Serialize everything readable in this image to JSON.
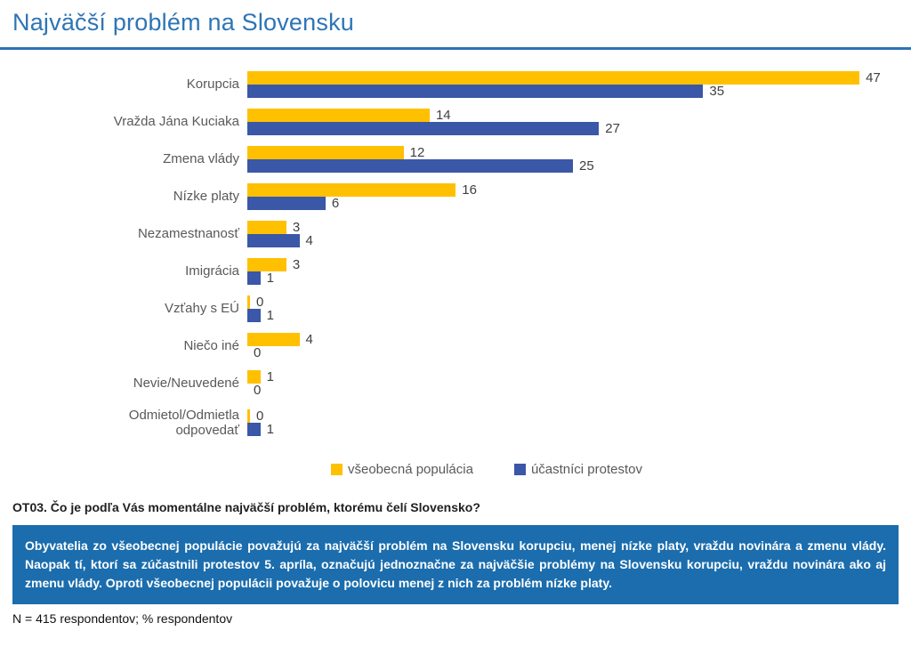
{
  "header": {
    "title": "Najväčší problém na Slovensku"
  },
  "chart_data": {
    "type": "bar",
    "orientation": "horizontal",
    "title": "Najväčší problém na Slovensku",
    "xlabel": "",
    "ylabel": "",
    "xlim": [
      0,
      50
    ],
    "grid": false,
    "value_labels": true,
    "legend_position": "bottom",
    "categories": [
      "Korupcia",
      "Vražda Jána Kuciaka",
      "Zmena vlády",
      "Nízke platy",
      "Nezamestnanosť",
      "Imigrácia",
      "Vzťahy s EÚ",
      "Niečo iné",
      "Nevie/Neuvedené",
      "Odmietol/Odmietla odpovedať"
    ],
    "series": [
      {
        "name": "všeobecná populácia",
        "color": "#FFC000",
        "values": [
          47,
          14,
          12,
          16,
          3,
          3,
          0,
          4,
          1,
          0
        ]
      },
      {
        "name": "účastníci protestov",
        "color": "#3A57A8",
        "values": [
          35,
          27,
          25,
          6,
          4,
          1,
          1,
          0,
          0,
          1
        ]
      }
    ]
  },
  "question": "OT03. Čo je podľa Vás momentálne najväčší problém, ktorému čelí Slovensko?",
  "summary": "Obyvatelia zo všeobecnej populácie považujú za najväčší problém na Slovensku korupciu, menej nízke platy, vraždu novinára a zmenu vlády. Naopak tí, ktorí sa zúčastnili protestov 5. apríla, označujú jednoznačne za najväčšie problémy na Slovensku korupciu, vraždu novinára ako aj zmenu vlády. Oproti všeobecnej populácii považuje o polovicu menej z nich za problém nízke platy.",
  "note": "N = 415 respondentov; % respondentov",
  "colors": {
    "title_blue": "#2E75B6",
    "rule_blue": "#2E74B5",
    "series_general": "#FFC000",
    "series_protesters": "#3A57A8",
    "summary_background": "#1B6DAD",
    "summary_text": "#FFFFFF"
  }
}
